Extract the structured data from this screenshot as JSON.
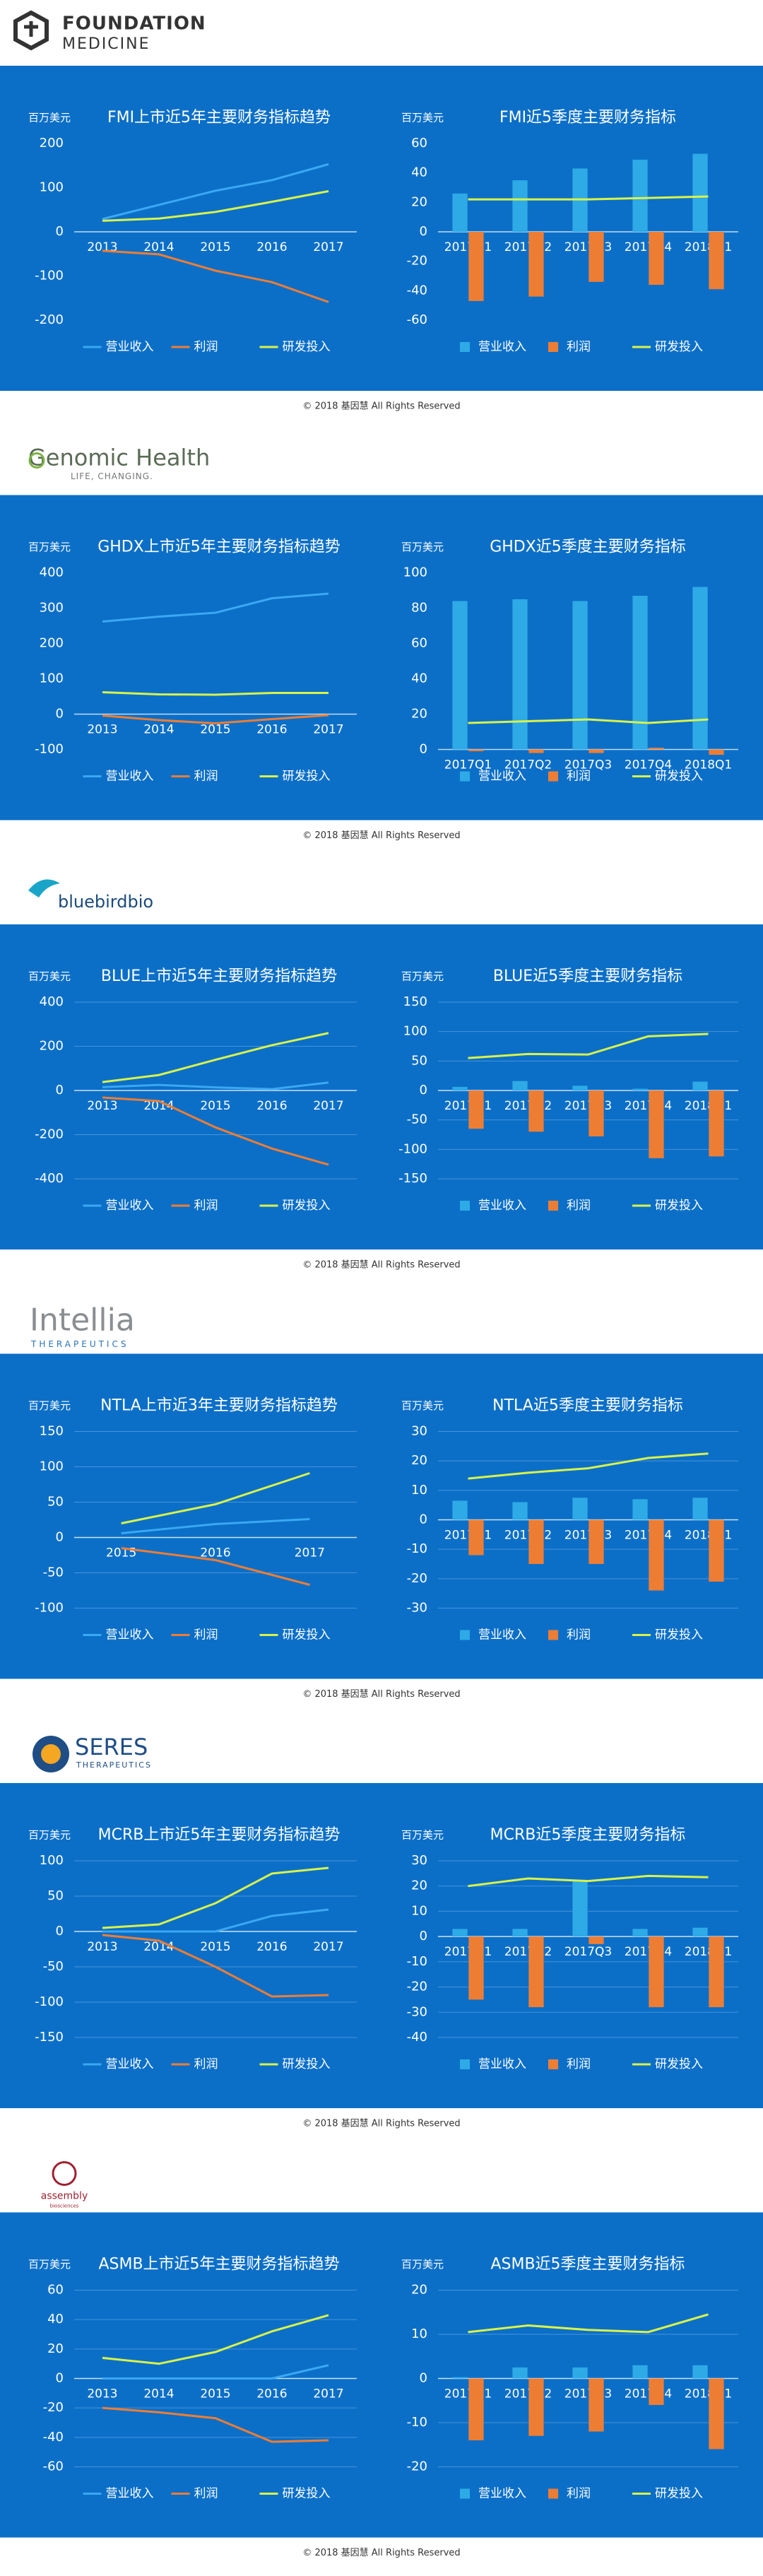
{
  "sections": [
    {
      "logo_text": "FOUNDATION",
      "logo_subtext": "MEDICINE",
      "copyright": "© 2018 基因慧 All Rights Reserved"
    },
    {
      "logo_text": "Genomic Health",
      "logo_subtext": "LIFE, CHANGING.",
      "copyright": "© 2018 基因慧 All Rights Reserved"
    },
    {
      "logo_text": "bluebirdbio",
      "copyright": "© 2018 基因慧 All Rights Reserved"
    },
    {
      "logo_text": "Intellia",
      "logo_subtext": "THERAPEUTICS",
      "copyright": "© 2018 基因慧 All Rights Reserved"
    },
    {
      "logo_text": "SERES",
      "logo_subtext": "THERAPEUTICS",
      "copyright": "© 2018 基因慧 All Rights Reserved"
    },
    {
      "logo_text": "assembly",
      "logo_subtext": "biosciences",
      "copyright": "© 2018 基因慧 All Rights Reserved"
    }
  ],
  "chart_data": [
    {
      "type": "line",
      "title": "FMI上市近5年主要财务指标趋势",
      "y_label": "百万美元",
      "categories": [
        "2013",
        "2014",
        "2015",
        "2016",
        "2017"
      ],
      "ylim": [
        -200,
        200
      ],
      "yticks": [
        -200,
        -100,
        0,
        100,
        200
      ],
      "grid": false,
      "series": [
        {
          "name": "营业收入",
          "color": "#3aa8f2",
          "values": [
            29,
            61,
            93,
            117,
            153
          ]
        },
        {
          "name": "利润",
          "color": "#ee7d34",
          "values": [
            -43,
            -51,
            -88,
            -114,
            -159
          ]
        },
        {
          "name": "研发投入",
          "color": "#d8f24a",
          "values": [
            25,
            30,
            45,
            68,
            92
          ]
        }
      ]
    },
    {
      "type": "bar",
      "title": "FMI近5季度主要财务指标",
      "y_label": "百万美元",
      "categories": [
        "2017Q1",
        "2017Q2",
        "2017Q3",
        "2017Q4",
        "2018Q1"
      ],
      "ylim": [
        -60,
        60
      ],
      "yticks": [
        -60,
        -40,
        -20,
        0,
        20,
        40,
        60
      ],
      "grid": false,
      "series": [
        {
          "name": "营业收入",
          "color": "#2eaae6",
          "values": [
            26,
            35,
            43,
            49,
            53
          ]
        },
        {
          "name": "利润",
          "color": "#ee7d34",
          "values": [
            -47,
            -44,
            -34,
            -36,
            -39
          ]
        },
        {
          "name": "研发投入",
          "color": "#d8f24a",
          "type": "line",
          "values": [
            22,
            22,
            22,
            23,
            24
          ]
        }
      ]
    },
    {
      "type": "line",
      "title": "GHDX上市近5年主要财务指标趋势",
      "y_label": "百万美元",
      "categories": [
        "2013",
        "2014",
        "2015",
        "2016",
        "2017"
      ],
      "ylim": [
        -100,
        400
      ],
      "yticks": [
        -100,
        0,
        100,
        200,
        300,
        400
      ],
      "grid": false,
      "series": [
        {
          "name": "营业收入",
          "color": "#3aa8f2",
          "values": [
            262,
            276,
            287,
            328,
            341
          ]
        },
        {
          "name": "利润",
          "color": "#ee7d34",
          "values": [
            -4,
            -17,
            -26,
            -14,
            -3
          ]
        },
        {
          "name": "研发投入",
          "color": "#d8f24a",
          "values": [
            62,
            56,
            55,
            60,
            60
          ]
        }
      ]
    },
    {
      "type": "bar",
      "title": "GHDX近5季度主要财务指标",
      "y_label": "百万美元",
      "categories": [
        "2017Q1",
        "2017Q2",
        "2017Q3",
        "2017Q4",
        "2018Q1"
      ],
      "ylim": [
        0,
        100
      ],
      "yticks": [
        0,
        20,
        40,
        60,
        80,
        100
      ],
      "grid": false,
      "series": [
        {
          "name": "营业收入",
          "color": "#2eaae6",
          "values": [
            84,
            85,
            84,
            87,
            92
          ]
        },
        {
          "name": "利润",
          "color": "#ee7d34",
          "values": [
            -1,
            -2,
            -2,
            1,
            -3
          ]
        },
        {
          "name": "研发投入",
          "color": "#d8f24a",
          "type": "line",
          "values": [
            15,
            16,
            17,
            15,
            17
          ]
        }
      ]
    },
    {
      "type": "line",
      "title": "BLUE上市近5年主要财务指标趋势",
      "y_label": "百万美元",
      "categories": [
        "2013",
        "2014",
        "2015",
        "2016",
        "2017"
      ],
      "ylim": [
        -400,
        400
      ],
      "yticks": [
        -400,
        -200,
        0,
        200,
        400
      ],
      "grid": true,
      "series": [
        {
          "name": "营业收入",
          "color": "#3aa8f2",
          "values": [
            15,
            25,
            14,
            6,
            36
          ]
        },
        {
          "name": "利润",
          "color": "#ee7d34",
          "values": [
            -32,
            -48,
            -167,
            -263,
            -336
          ]
        },
        {
          "name": "研发投入",
          "color": "#d8f24a",
          "values": [
            38,
            70,
            139,
            205,
            260
          ]
        }
      ]
    },
    {
      "type": "bar",
      "title": "BLUE近5季度主要财务指标",
      "y_label": "百万美元",
      "categories": [
        "2017Q1",
        "2017Q2",
        "2017Q3",
        "2017Q4",
        "2018Q1"
      ],
      "ylim": [
        -150,
        150
      ],
      "yticks": [
        -150,
        -100,
        -50,
        0,
        50,
        100,
        150
      ],
      "grid": true,
      "series": [
        {
          "name": "营业收入",
          "color": "#2eaae6",
          "values": [
            6,
            16,
            8,
            3,
            15
          ]
        },
        {
          "name": "利润",
          "color": "#ee7d34",
          "values": [
            -65,
            -70,
            -78,
            -115,
            -112
          ]
        },
        {
          "name": "研发投入",
          "color": "#d8f24a",
          "type": "line",
          "values": [
            55,
            62,
            61,
            92,
            96
          ]
        }
      ]
    },
    {
      "type": "line",
      "title": "NTLA上市近3年主要财务指标趋势",
      "y_label": "百万美元",
      "categories": [
        "2015",
        "2016",
        "2017"
      ],
      "ylim": [
        -100,
        150
      ],
      "yticks": [
        -100,
        -50,
        0,
        50,
        100,
        150
      ],
      "grid": true,
      "series": [
        {
          "name": "营业收入",
          "color": "#3aa8f2",
          "values": [
            6,
            19,
            26
          ]
        },
        {
          "name": "利润",
          "color": "#ee7d34",
          "values": [
            -15,
            -32,
            -67
          ]
        },
        {
          "name": "研发投入",
          "color": "#d8f24a",
          "values": [
            20,
            47,
            91
          ]
        }
      ]
    },
    {
      "type": "bar",
      "title": "NTLA近5季度主要财务指标",
      "y_label": "百万美元",
      "categories": [
        "2017Q1",
        "2017Q2",
        "2017Q3",
        "2017Q4",
        "2018Q1"
      ],
      "ylim": [
        -30,
        30
      ],
      "yticks": [
        -30,
        -20,
        -10,
        0,
        10,
        20,
        30
      ],
      "grid": true,
      "series": [
        {
          "name": "营业收入",
          "color": "#2eaae6",
          "values": [
            6.5,
            6,
            7.5,
            7,
            7.5
          ]
        },
        {
          "name": "利润",
          "color": "#ee7d34",
          "values": [
            -12,
            -15,
            -15,
            -24,
            -21
          ]
        },
        {
          "name": "研发投入",
          "color": "#d8f24a",
          "type": "line",
          "values": [
            14,
            16,
            17.5,
            21,
            22.5
          ]
        }
      ]
    },
    {
      "type": "line",
      "title": "MCRB上市近5年主要财务指标趋势",
      "y_label": "百万美元",
      "categories": [
        "2013",
        "2014",
        "2015",
        "2016",
        "2017"
      ],
      "ylim": [
        -150,
        100
      ],
      "yticks": [
        -150,
        -100,
        -50,
        0,
        50,
        100
      ],
      "grid": true,
      "series": [
        {
          "name": "营业收入",
          "color": "#3aa8f2",
          "values": [
            0,
            0,
            0,
            22,
            31
          ]
        },
        {
          "name": "利润",
          "color": "#ee7d34",
          "values": [
            -5,
            -13,
            -50,
            -92,
            -90
          ]
        },
        {
          "name": "研发投入",
          "color": "#d8f24a",
          "values": [
            5,
            10,
            40,
            82,
            90
          ]
        }
      ]
    },
    {
      "type": "bar",
      "title": "MCRB近5季度主要财务指标",
      "y_label": "百万美元",
      "categories": [
        "2017Q1",
        "2017Q2",
        "2017Q3",
        "2017Q4",
        "2018Q1"
      ],
      "ylim": [
        -40,
        30
      ],
      "yticks": [
        -40,
        -30,
        -20,
        -10,
        0,
        10,
        20,
        30
      ],
      "grid": true,
      "series": [
        {
          "name": "营业收入",
          "color": "#2eaae6",
          "values": [
            3,
            3,
            22,
            3,
            3.5
          ]
        },
        {
          "name": "利润",
          "color": "#ee7d34",
          "values": [
            -25,
            -28,
            -3,
            -28,
            -28
          ]
        },
        {
          "name": "研发投入",
          "color": "#d8f24a",
          "type": "line",
          "values": [
            20,
            23,
            22,
            24,
            23.5
          ]
        }
      ]
    },
    {
      "type": "line",
      "title": "ASMB上市近5年主要财务指标趋势",
      "y_label": "百万美元",
      "categories": [
        "2013",
        "2014",
        "2015",
        "2016",
        "2017"
      ],
      "ylim": [
        -60,
        60
      ],
      "yticks": [
        -60,
        -40,
        -20,
        0,
        20,
        40,
        60
      ],
      "grid": true,
      "series": [
        {
          "name": "营业收入",
          "color": "#3aa8f2",
          "values": [
            0,
            0,
            0,
            0,
            9
          ]
        },
        {
          "name": "利润",
          "color": "#ee7d34",
          "values": [
            -20,
            -23,
            -27,
            -43,
            -42
          ]
        },
        {
          "name": "研发投入",
          "color": "#d8f24a",
          "values": [
            14,
            10,
            18,
            32,
            43
          ]
        }
      ]
    },
    {
      "type": "bar",
      "title": "ASMB近5季度主要财务指标",
      "y_label": "百万美元",
      "categories": [
        "2017Q1",
        "2017Q2",
        "2017Q3",
        "2017Q4",
        "2018Q1"
      ],
      "ylim": [
        -20,
        20
      ],
      "yticks": [
        -20,
        -10,
        0,
        10,
        20
      ],
      "grid": true,
      "series": [
        {
          "name": "营业收入",
          "color": "#2eaae6",
          "values": [
            0.3,
            2.5,
            2.5,
            3,
            3
          ]
        },
        {
          "name": "利润",
          "color": "#ee7d34",
          "values": [
            -14,
            -13,
            -12,
            -6,
            -16
          ]
        },
        {
          "name": "研发投入",
          "color": "#d8f24a",
          "type": "line",
          "values": [
            10.5,
            12,
            11,
            10.5,
            14.5
          ]
        }
      ]
    }
  ]
}
